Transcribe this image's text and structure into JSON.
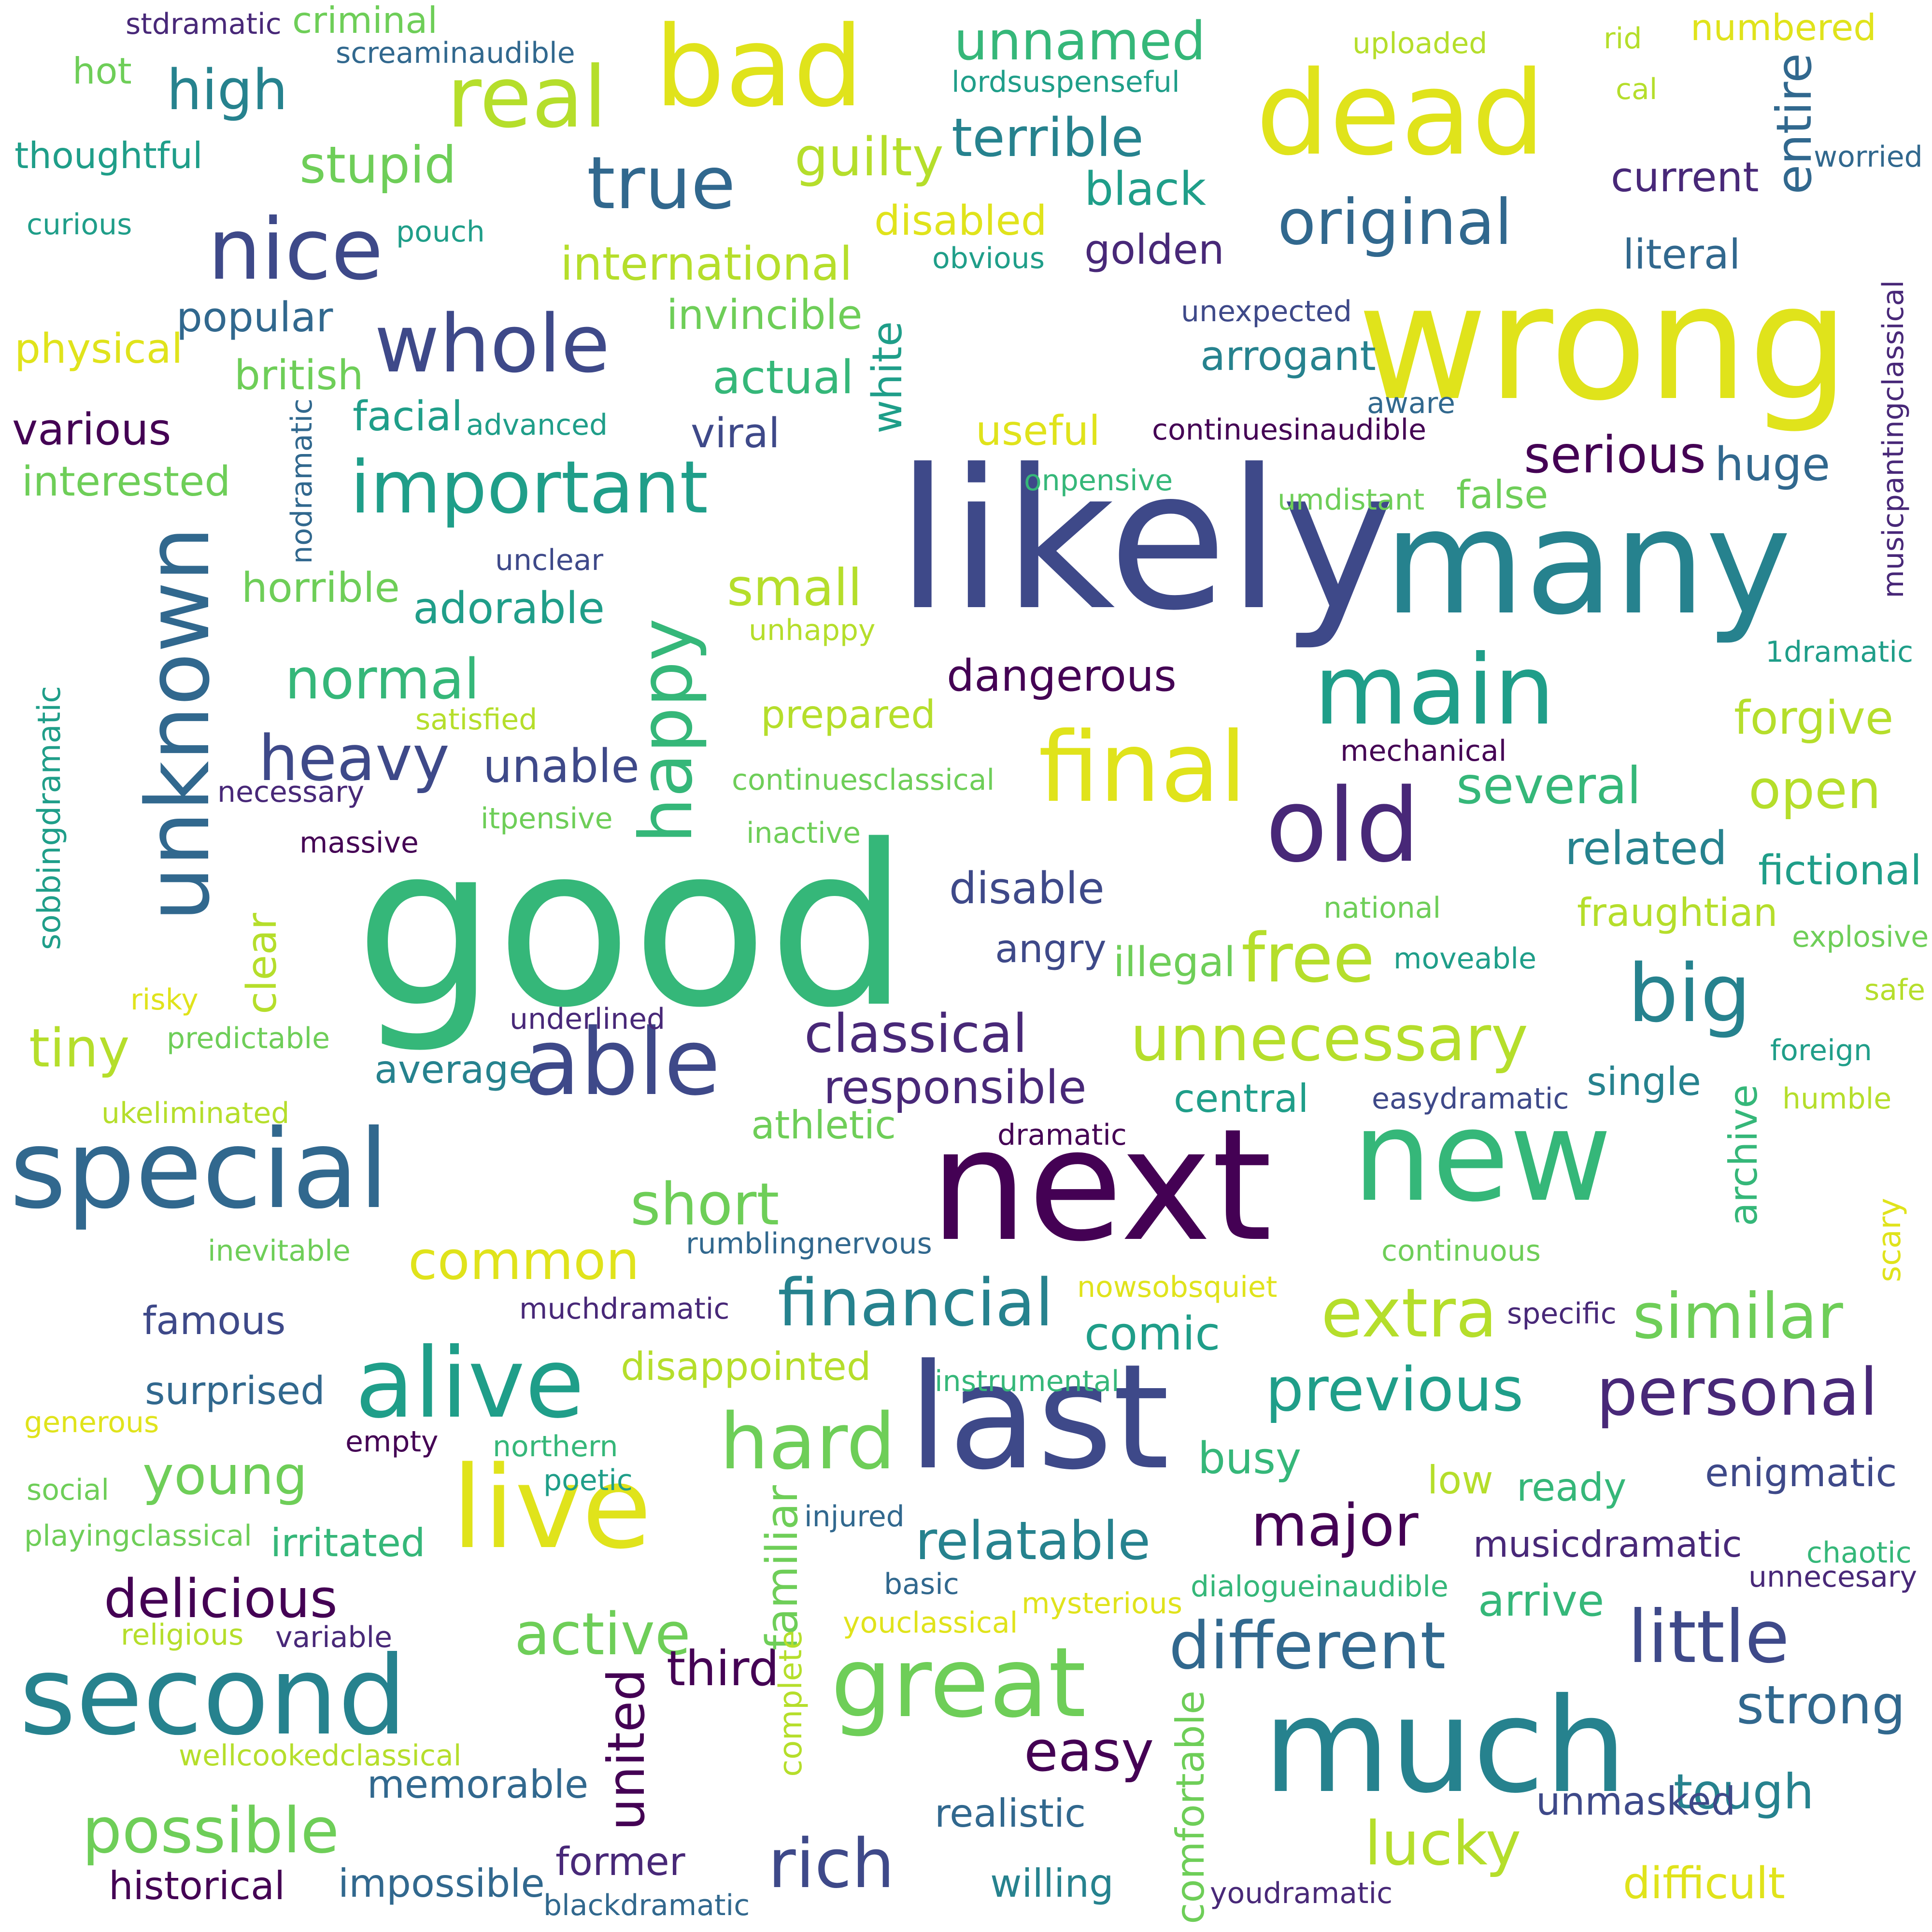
{
  "palette": {
    "purple": "#440154",
    "indigo": "#482878",
    "slate": "#3e4989",
    "steel": "#31688e",
    "teal": "#26828e",
    "seagreen": "#1f9e89",
    "green": "#35b779",
    "lime": "#6ece58",
    "chartreuse": "#b5de2b",
    "yellow": "#e0e31b"
  },
  "words": [
    "good",
    "likely",
    "wrong",
    "next",
    "many",
    "last",
    "much",
    "new",
    "dead",
    "bad",
    "live",
    "special",
    "second",
    "unknown",
    "final",
    "main",
    "old",
    "alive",
    "great",
    "able",
    "important",
    "whole",
    "nice",
    "real",
    "true",
    "big",
    "happy",
    "hard",
    "financial",
    "little",
    "different",
    "previous",
    "personal",
    "unnecessary",
    "free",
    "original",
    "extra",
    "similar",
    "possible",
    "rich",
    "active",
    "lucky",
    "heavy",
    "short",
    "common",
    "normal",
    "classical",
    "responsible",
    "major",
    "serious",
    "high",
    "stupid",
    "guilty",
    "terrible",
    "unnamed",
    "international",
    "actual",
    "small",
    "tiny",
    "young",
    "delicious",
    "relatable",
    "easy",
    "strong",
    "tough",
    "united",
    "third",
    "comic",
    "open",
    "forgive",
    "several",
    "related",
    "fictional",
    "adorable",
    "dangerous",
    "unable",
    "disable",
    "huge",
    "entire",
    "white",
    "familiar",
    "comfortable",
    "archive",
    "clear",
    "nodramatic",
    "sobbingdramatic",
    "musicpantingclassical",
    "complete",
    "scary",
    "various",
    "interested",
    "popular",
    "facial",
    "viral",
    "black",
    "golden",
    "current",
    "literal",
    "arrogant",
    "british",
    "physical",
    "horrible",
    "invincible",
    "useful",
    "disabled",
    "fraughtian",
    "illegal",
    "average",
    "athletic",
    "central",
    "single",
    "angry",
    "surprised",
    "famous",
    "irritated",
    "memorable",
    "historical",
    "impossible",
    "former",
    "willing",
    "realistic",
    "arrive",
    "enigmatic",
    "busy",
    "low",
    "ready",
    "musicdramatic",
    "unmasked",
    "difficult",
    "prepared",
    "disappointed",
    "false",
    "criminal",
    "hot",
    "thoughtful",
    "curious",
    "stdramatic",
    "screaminaudible",
    "uploaded",
    "rid",
    "cal",
    "numbered",
    "lordsuspenseful",
    "worried",
    "pouch",
    "obvious",
    "unexpected",
    "aware",
    "continuesinaudible",
    "advanced",
    "onpensive",
    "umdistant",
    "unclear",
    "unhappy",
    "satisfied",
    "continuesclassical",
    "itpensive",
    "necessary",
    "massive",
    "inactive",
    "mechanical",
    "national",
    "moveable",
    "explosive",
    "safe",
    "foreign",
    "humble",
    "risky",
    "predictable",
    "underlined",
    "ukeliminated",
    "easydramatic",
    "dramatic",
    "continuous",
    "inevitable",
    "rumblingnervous",
    "nowsobsquiet",
    "muchdramatic",
    "specific",
    "instrumental",
    "generous",
    "empty",
    "northern",
    "poetic",
    "social",
    "injured",
    "playingclassical",
    "basic",
    "mysterious",
    "dialogueinaudible",
    "chaotic",
    "unnecesary",
    "religious",
    "variable",
    "youclassical",
    "wellcookedclassical",
    "youdramatic",
    "blackdramatic",
    "1dramatic"
  ]
}
